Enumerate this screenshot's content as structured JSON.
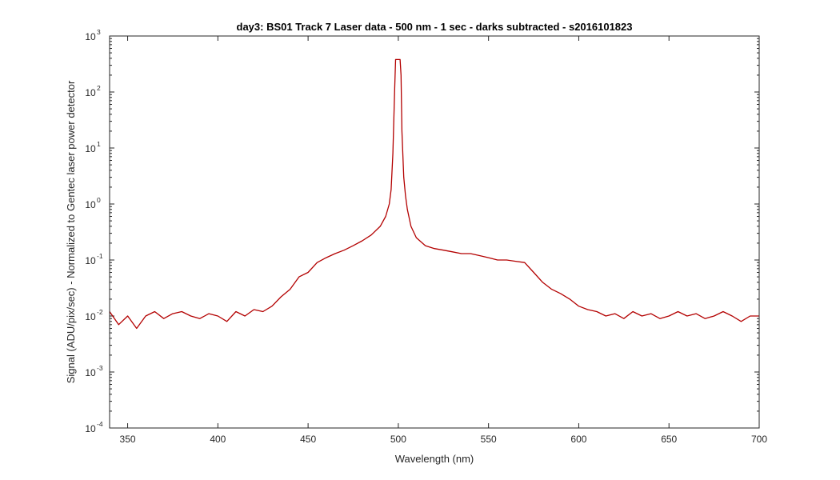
{
  "chart_data": {
    "type": "line",
    "title": "day3: BS01  Track 7 Laser data - 500 nm - 1 sec - darks subtracted - s2016101823",
    "xlabel": "Wavelength (nm)",
    "ylabel": "Signal (ADU/pix/sec) - Normalized to Gentec laser power detector",
    "x_scale": "linear",
    "y_scale": "log",
    "xlim": [
      340,
      700
    ],
    "ylim": [
      0.0001,
      1000
    ],
    "x_ticks": [
      350,
      400,
      450,
      500,
      550,
      600,
      650,
      700
    ],
    "x_tick_labels": [
      "350",
      "400",
      "450",
      "500",
      "550",
      "600",
      "650",
      "700"
    ],
    "y_ticks": [
      0.0001,
      0.001,
      0.01,
      0.1,
      1,
      10,
      100,
      1000
    ],
    "y_tick_labels": [
      {
        "base": "10",
        "exp": "-4"
      },
      {
        "base": "10",
        "exp": "-3"
      },
      {
        "base": "10",
        "exp": "-2"
      },
      {
        "base": "10",
        "exp": "-1"
      },
      {
        "base": "10",
        "exp": "0"
      },
      {
        "base": "10",
        "exp": "1"
      },
      {
        "base": "10",
        "exp": "2"
      },
      {
        "base": "10",
        "exp": "3"
      }
    ],
    "grid": false,
    "series": [
      {
        "color": "#b30000",
        "x": [
          340,
          345,
          350,
          355,
          360,
          365,
          370,
          375,
          380,
          385,
          390,
          395,
          400,
          405,
          410,
          415,
          420,
          425,
          430,
          435,
          440,
          445,
          450,
          455,
          460,
          465,
          470,
          475,
          480,
          485,
          490,
          493,
          495,
          496,
          497,
          498,
          498.5,
          499,
          500,
          501,
          501.5,
          502,
          503,
          504,
          505,
          507,
          510,
          515,
          520,
          525,
          530,
          535,
          540,
          545,
          550,
          555,
          560,
          565,
          570,
          575,
          580,
          585,
          590,
          595,
          600,
          605,
          610,
          615,
          620,
          625,
          630,
          635,
          640,
          645,
          650,
          655,
          660,
          665,
          670,
          675,
          680,
          685,
          690,
          695,
          700
        ],
        "y": [
          0.012,
          0.007,
          0.01,
          0.006,
          0.01,
          0.012,
          0.009,
          0.011,
          0.012,
          0.01,
          0.009,
          0.011,
          0.01,
          0.008,
          0.012,
          0.01,
          0.013,
          0.012,
          0.015,
          0.022,
          0.03,
          0.05,
          0.06,
          0.09,
          0.11,
          0.13,
          0.15,
          0.18,
          0.22,
          0.28,
          0.4,
          0.6,
          1.0,
          1.8,
          8,
          120,
          380,
          380,
          380,
          380,
          200,
          20,
          3,
          1.4,
          0.8,
          0.4,
          0.25,
          0.18,
          0.16,
          0.15,
          0.14,
          0.13,
          0.13,
          0.12,
          0.11,
          0.1,
          0.1,
          0.095,
          0.09,
          0.06,
          0.04,
          0.03,
          0.025,
          0.02,
          0.015,
          0.013,
          0.012,
          0.01,
          0.011,
          0.009,
          0.012,
          0.01,
          0.011,
          0.009,
          0.01,
          0.012,
          0.01,
          0.011,
          0.009,
          0.01,
          0.012,
          0.01,
          0.008,
          0.01,
          0.01
        ]
      }
    ]
  }
}
